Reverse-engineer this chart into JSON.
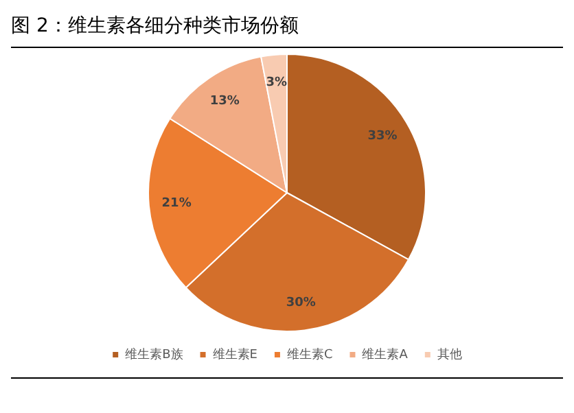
{
  "chart_data": {
    "type": "pie",
    "title": "图 2：维生素各细分种类市场份额",
    "categories": [
      "维生素B族",
      "维生素E",
      "维生素C",
      "维生素A",
      "其他"
    ],
    "values": [
      33,
      30,
      21,
      13,
      3
    ],
    "colors": [
      "#b45f22",
      "#d36f2b",
      "#ed7d31",
      "#f2ab84",
      "#f8cbb1"
    ],
    "value_labels": [
      "33%",
      "30%",
      "21%",
      "13%",
      "3%"
    ],
    "legend": "bottom"
  }
}
